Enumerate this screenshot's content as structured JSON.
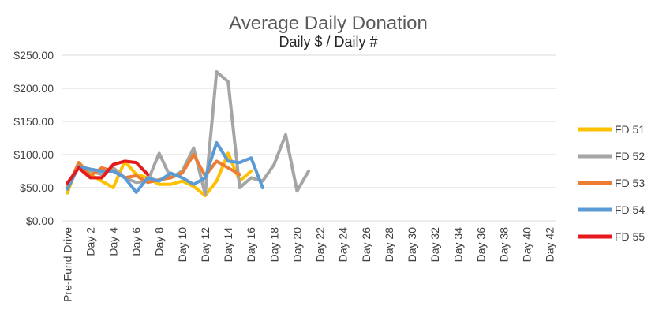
{
  "chart_data": {
    "type": "line",
    "title": "Average Daily Donation",
    "subtitle": "Daily $ / Daily #",
    "xlabel": "",
    "ylabel": "",
    "ylim": [
      0,
      250
    ],
    "yticks": [
      "$250.00",
      "$200.00",
      "$150.00",
      "$100.00",
      "$50.00",
      "$0.00"
    ],
    "ytick_values": [
      250,
      200,
      150,
      100,
      50,
      0
    ],
    "x_tick_labels": [
      "Pre-Fund Drive",
      "Day 2",
      "Day 4",
      "Day 6",
      "Day 8",
      "Day 10",
      "Day 12",
      "Day 14",
      "Day 16",
      "Day 18",
      "Day 20",
      "Day 22",
      "Day 24",
      "Day 26",
      "Day 28",
      "Day 30",
      "Day 32",
      "Day 34",
      "Day 36",
      "Day 38",
      "Day 40",
      "Day 42"
    ],
    "category_count": 43,
    "grid": true,
    "legend_position": "right",
    "series": [
      {
        "name": "FD 51",
        "color": "#FFC000",
        "values": [
          42,
          88,
          70,
          60,
          50,
          90,
          70,
          65,
          55,
          55,
          60,
          52,
          38,
          60,
          102,
          60,
          75
        ]
      },
      {
        "name": "FD 52",
        "color": "#A5A5A5",
        "values": [
          48,
          82,
          75,
          70,
          80,
          65,
          58,
          60,
          102,
          65,
          75,
          110,
          40,
          225,
          210,
          50,
          65,
          60,
          85,
          130,
          45,
          75
        ]
      },
      {
        "name": "FD 53",
        "color": "#ED7D31",
        "values": [
          50,
          88,
          68,
          80,
          75,
          65,
          68,
          58,
          62,
          65,
          72,
          100,
          68,
          90,
          80,
          70
        ]
      },
      {
        "name": "FD 54",
        "color": "#5B9BD5",
        "values": [
          48,
          82,
          78,
          75,
          75,
          65,
          43,
          65,
          60,
          72,
          65,
          55,
          65,
          118,
          90,
          88,
          95,
          50
        ]
      },
      {
        "name": "FD 55",
        "color": "#E41A1C",
        "values": [
          57,
          80,
          65,
          65,
          85,
          90,
          88,
          70
        ]
      }
    ]
  }
}
